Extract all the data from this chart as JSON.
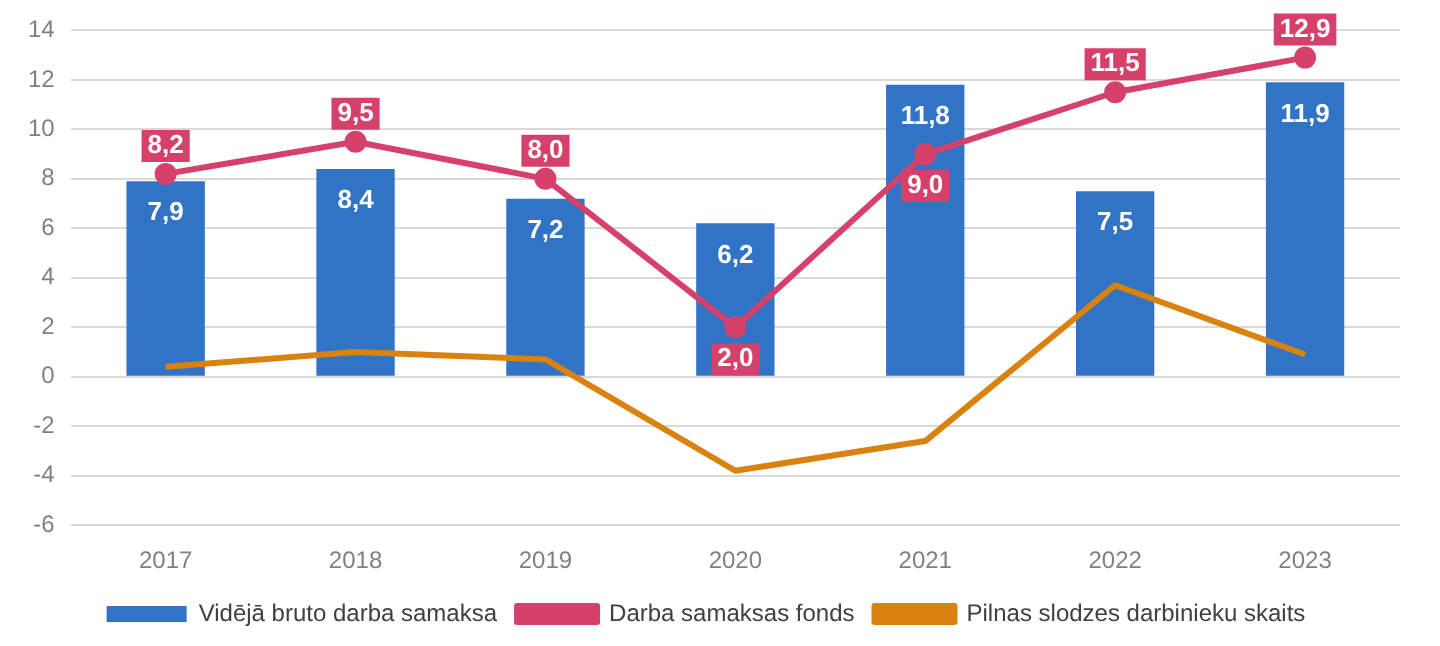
{
  "chart_data": {
    "type": "bar",
    "categories": [
      "2017",
      "2018",
      "2019",
      "2020",
      "2021",
      "2022",
      "2023"
    ],
    "series": [
      {
        "name": "Vidējā bruto darba samaksa",
        "color": "#3173c4",
        "values": [
          7.9,
          8.4,
          7.2,
          6.2,
          11.8,
          7.5,
          11.9
        ],
        "value_labels": [
          "7,9",
          "8,4",
          "7,2",
          "6,2",
          "11,8",
          "7,5",
          "11,9"
        ]
      },
      {
        "name": "Darba samaksas fonds",
        "type": "line",
        "color": "#d6416b",
        "marker": "circle",
        "values": [
          8.2,
          9.5,
          8.0,
          2.0,
          9.0,
          11.5,
          12.9
        ],
        "value_labels": [
          "8,2",
          "9,5",
          "8,0",
          "2,0",
          "9,0",
          "11,5",
          "12,9"
        ]
      },
      {
        "name": "Pilnas slodzes darbinieku skaits",
        "type": "line",
        "color": "#d9820f",
        "marker": "none",
        "values": [
          0.4,
          1.0,
          0.7,
          -3.8,
          -2.6,
          3.7,
          0.9
        ]
      }
    ],
    "ylim": [
      -6,
      14
    ],
    "yticks": [
      -6,
      -4,
      -2,
      0,
      2,
      4,
      6,
      8,
      10,
      12,
      14
    ],
    "grid": "y",
    "legend": "bottom"
  }
}
